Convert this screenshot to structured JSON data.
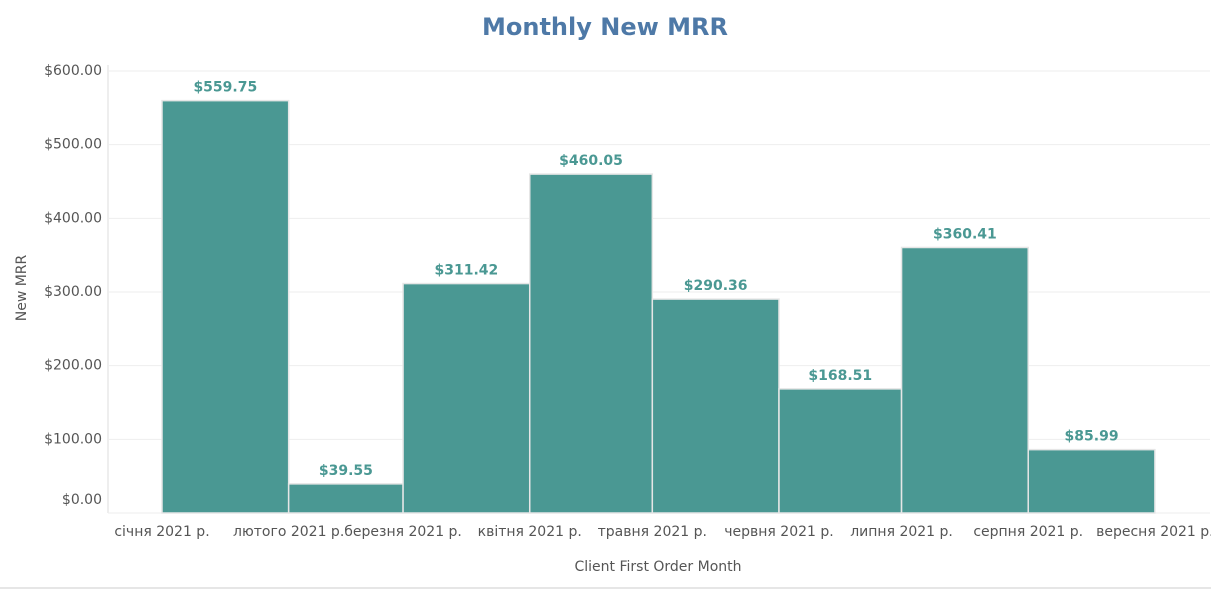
{
  "chart_data": {
    "type": "bar",
    "title": "Monthly New MRR",
    "x_label": "Client First Order Month",
    "y_label": "New MRR",
    "categories": [
      "січня 2021 р.",
      "лютого 2021 р.",
      "березня 2021 р.",
      "квітня 2021 р.",
      "травня 2021 р.",
      "червня 2021 р.",
      "липня 2021 р.",
      "серпня 2021 р.",
      "вересня 2021 р."
    ],
    "values": [
      559.75,
      39.55,
      311.42,
      460.05,
      290.36,
      168.51,
      360.41,
      85.99,
      null
    ],
    "value_labels": [
      "$559.75",
      "$39.55",
      "$311.42",
      "$460.05",
      "$290.36",
      "$168.51",
      "$360.41",
      "$85.99",
      null
    ],
    "color": "#4a9893",
    "ylim": [
      0,
      600
    ],
    "yticks": [
      {
        "value": 0,
        "label": "$0.00"
      },
      {
        "value": 100,
        "label": "$100.00"
      },
      {
        "value": 200,
        "label": "$200.00"
      },
      {
        "value": 300,
        "label": "$300.00"
      },
      {
        "value": 400,
        "label": "$400.00"
      },
      {
        "value": 500,
        "label": "$500.00"
      },
      {
        "value": 600,
        "label": "$600.00"
      }
    ],
    "grid": true
  }
}
